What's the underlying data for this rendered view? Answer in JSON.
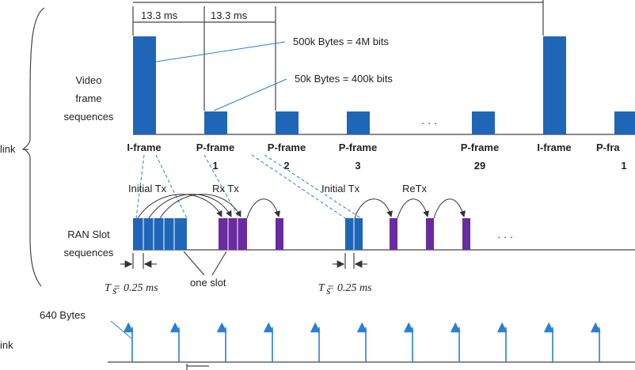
{
  "top_labels": {
    "interval_a": "13.3 ms",
    "interval_b": "13.3 ms",
    "iframe_size": "500k Bytes = 4M bits",
    "pframe_size": "50k Bytes = 400k bits"
  },
  "video": {
    "row_label": [
      "Video",
      "frame",
      "sequences"
    ],
    "frames": [
      {
        "name": "I-frame",
        "index": ""
      },
      {
        "name": "P-frame",
        "index": "1"
      },
      {
        "name": "P-frame",
        "index": "2"
      },
      {
        "name": "P-frame",
        "index": "3"
      },
      {
        "name": "P-frame",
        "index": "29"
      },
      {
        "name": "I-frame",
        "index": ""
      },
      {
        "name": "P-fra",
        "index": "1"
      }
    ],
    "ellipsis": "· · ·"
  },
  "side_labels": {
    "uplink": "link",
    "downlink": "ink"
  },
  "ran": {
    "row_label": [
      "RAN Slot",
      "sequences"
    ],
    "initial_tx_1": "Initial Tx",
    "rx_tx": "Rx Tx",
    "initial_tx_2": "Initial Tx",
    "retx": "ReTx",
    "ts_1": "T  = 0.25 ms",
    "ts_2": "T  = 0.25 ms",
    "ts_sub": "s",
    "one_slot": "one slot",
    "ellipsis": "· · ·"
  },
  "bottom": {
    "packet_size": "640 Bytes"
  },
  "colors": {
    "frame_blue": "#1f66b8",
    "retx_purple": "#6a2aa0",
    "leader_blue": "#2a7fd0"
  }
}
